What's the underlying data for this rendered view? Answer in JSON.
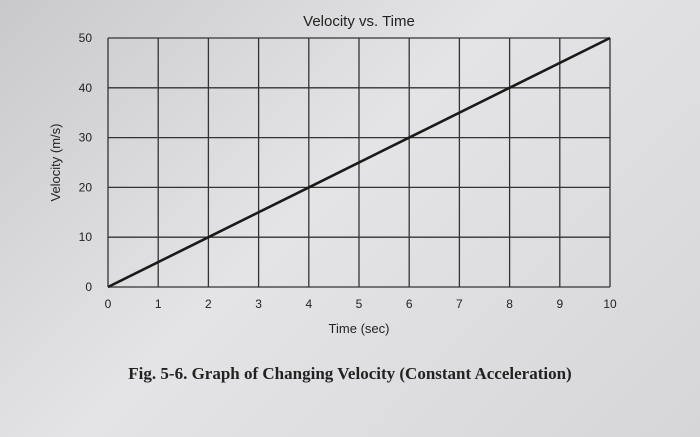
{
  "chart_data": {
    "type": "line",
    "title": "Velocity vs. Time",
    "xlabel": "Time (sec)",
    "ylabel": "Velocity (m/s)",
    "xlim": [
      0,
      10
    ],
    "ylim": [
      0,
      50
    ],
    "x_ticks": [
      "0",
      "1",
      "2",
      "3",
      "4",
      "5",
      "6",
      "7",
      "8",
      "9",
      "10"
    ],
    "y_ticks": [
      "0",
      "10",
      "20",
      "30",
      "40",
      "50"
    ],
    "grid": true,
    "legend": "none",
    "series": [
      {
        "x": [
          0,
          2,
          4,
          6,
          8,
          10
        ],
        "y": [
          0,
          10,
          20,
          30,
          40,
          50
        ]
      }
    ],
    "line_color": "#1a1a1a",
    "grid_color": "#333333"
  },
  "caption": "Fig. 5-6. Graph of Changing Velocity (Constant Acceleration)"
}
